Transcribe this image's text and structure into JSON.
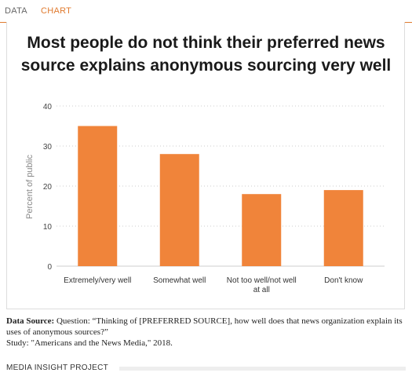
{
  "tabs": {
    "data_label": "DATA",
    "chart_label": "CHART"
  },
  "title": {
    "line1": "Most people do not think their preferred news",
    "line2": "source explains anonymous sourcing very well"
  },
  "chart_data": {
    "type": "bar",
    "title": "Most people do not think their preferred news source explains anonymous sourcing very well",
    "categories": [
      [
        "Extremely/very well"
      ],
      [
        "Somewhat well"
      ],
      [
        "Not too well/not well",
        "at all"
      ],
      [
        "Don't know"
      ]
    ],
    "values": [
      35,
      28,
      18,
      19
    ],
    "xlabel": "",
    "ylabel": "Percent of public",
    "ylim": [
      0,
      40
    ],
    "yticks": [
      0,
      10,
      20,
      30,
      40
    ],
    "grid": true,
    "bar_color": "#f0843a"
  },
  "source": {
    "label": "Data Source:",
    "question": " Question: “Thinking of [PREFERRED SOURCE], how well does that news organization explain its uses of anonymous sources?”",
    "study": "Study: \"Americans and the News Media,\" 2018."
  },
  "footer": {
    "label": "MEDIA INSIGHT PROJECT"
  }
}
